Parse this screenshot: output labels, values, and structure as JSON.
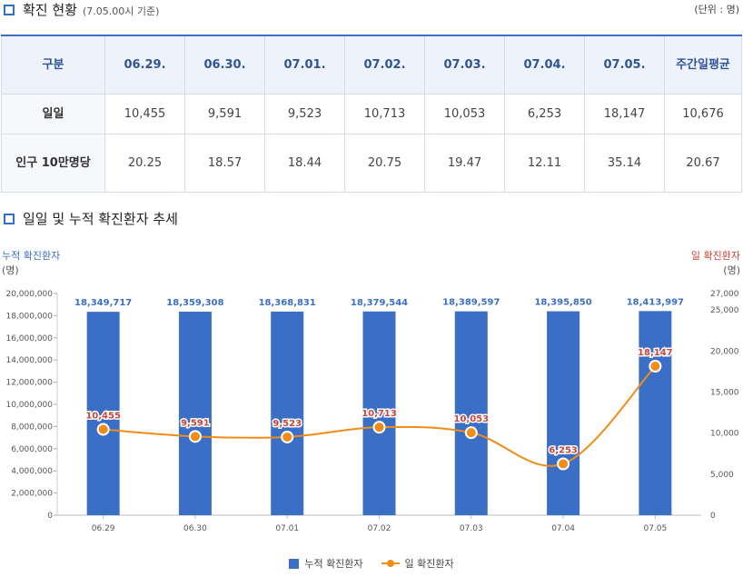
{
  "section1": {
    "title": "확진 현황",
    "subtitle": "(7.05.00시 기준)",
    "unit": "(단위 : 명)"
  },
  "table": {
    "header": [
      "구분",
      "06.29.",
      "06.30.",
      "07.01.",
      "07.02.",
      "07.03.",
      "07.04.",
      "07.05.",
      "주간일평균"
    ],
    "rows": [
      {
        "label": "일일",
        "cells": [
          "10,455",
          "9,591",
          "9,523",
          "10,713",
          "10,053",
          "6,253",
          "18,147",
          "10,676"
        ]
      },
      {
        "label": "인구 10만명당",
        "cells": [
          "20.25",
          "18.57",
          "18.44",
          "20.75",
          "19.47",
          "12.11",
          "35.14",
          "20.67"
        ]
      }
    ]
  },
  "section2": {
    "title": "일일 및 누적 확진환자 추세"
  },
  "colors": {
    "bar": "#3b6fc5",
    "line": "#f28c18",
    "left_axis_title": "#3b6fc5",
    "right_axis_title": "#c8463c",
    "bar_label": "#3b6fc5",
    "line_label": "#c8463c"
  },
  "chart_data": {
    "type": "bar",
    "categories": [
      "06.29",
      "06.30",
      "07.01",
      "07.02",
      "07.03",
      "07.04",
      "07.05"
    ],
    "series": [
      {
        "name": "누적 확진환자",
        "type": "bar",
        "axis": "left",
        "values": [
          18349717,
          18359308,
          18368831,
          18379544,
          18389597,
          18395850,
          18413997
        ],
        "labels": [
          "18,349,717",
          "18,359,308",
          "18,368,831",
          "18,379,544",
          "18,389,597",
          "18,395,850",
          "18,413,997"
        ]
      },
      {
        "name": "일 확진환자",
        "type": "line",
        "axis": "right",
        "values": [
          10455,
          9591,
          9523,
          10713,
          10053,
          6253,
          18147
        ],
        "labels": [
          "10,455",
          "9,591",
          "9,523",
          "10,713",
          "10,053",
          "6,253",
          "18,147"
        ]
      }
    ],
    "left_axis": {
      "title": "누적 확진환자",
      "unit": "(명)",
      "ylim": [
        0,
        20000000
      ],
      "ticks": [
        "0",
        "2,000,000",
        "4,000,000",
        "6,000,000",
        "8,000,000",
        "10,000,000",
        "12,000,000",
        "14,000,000",
        "16,000,000",
        "18,000,000",
        "20,000,000"
      ]
    },
    "right_axis": {
      "title": "일 확진환자",
      "unit": "(명)",
      "ylim": [
        0,
        27000
      ],
      "ticks": [
        0,
        5000,
        10000,
        15000,
        20000,
        25000,
        27000
      ],
      "tick_labels": [
        "0",
        "5,000",
        "10,000",
        "15,000",
        "20,000",
        "25,000",
        "27,000"
      ]
    },
    "grid": false,
    "legend_placement": "bottom"
  }
}
